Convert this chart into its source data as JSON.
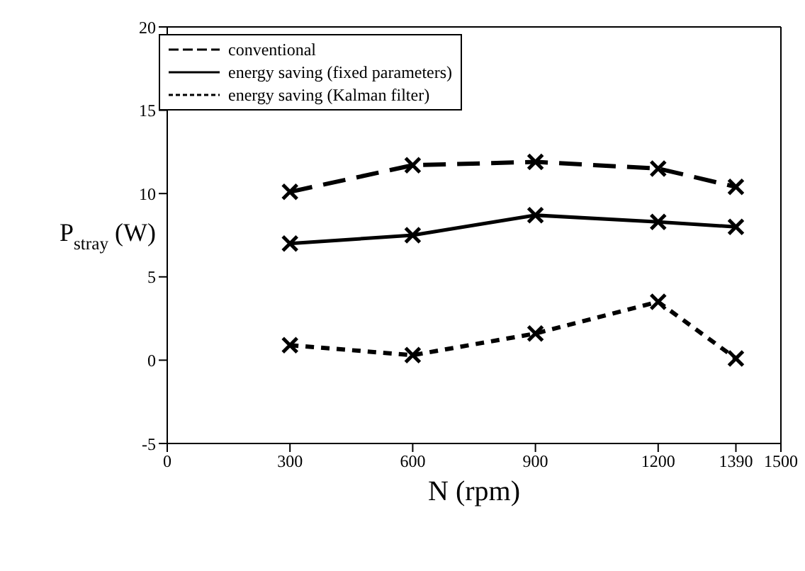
{
  "chart_data": {
    "type": "line",
    "xlabel": "N (rpm)",
    "ylabel": "P$_{stray}$ (W)",
    "x": [
      300,
      600,
      900,
      1200,
      1390
    ],
    "series": [
      {
        "name": "conventional",
        "color": "#000000",
        "line_style": "dashed",
        "values": [
          10.1,
          11.7,
          11.9,
          11.5,
          10.4
        ]
      },
      {
        "name": "energy saving (fixed parameters)",
        "color": "#000000",
        "line_style": "solid",
        "values": [
          7.0,
          7.5,
          8.7,
          8.3,
          8.0
        ]
      },
      {
        "name": "energy saving (Kalman filter)",
        "color": "#000000",
        "line_style": "dotted",
        "values": [
          0.9,
          0.3,
          1.6,
          3.5,
          0.1
        ]
      }
    ],
    "xlim": [
      0,
      1500
    ],
    "xticks": [
      0,
      300,
      600,
      900,
      1200,
      1390,
      1500
    ],
    "ylim": [
      -5,
      20
    ],
    "yticks": [
      -5,
      0,
      5,
      10,
      15,
      20
    ],
    "marker": "cross",
    "legend": "top left",
    "grid": false
  }
}
